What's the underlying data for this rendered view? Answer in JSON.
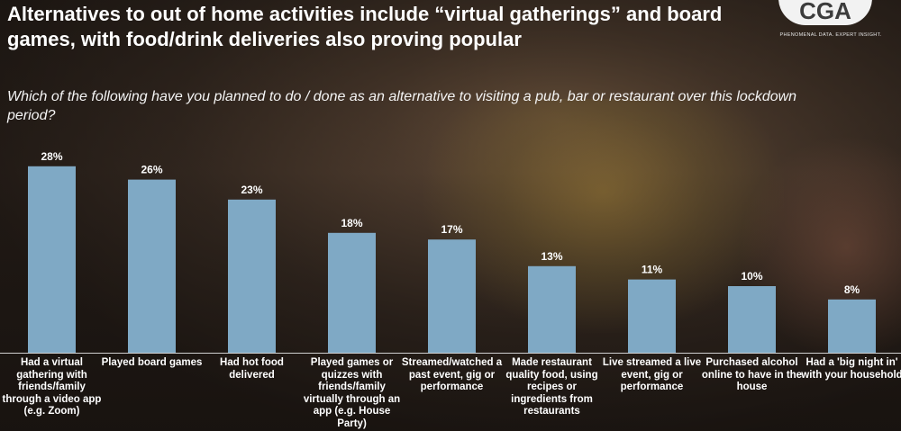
{
  "title": "Alternatives to out of home activities include “virtual gatherings” and board games, with food/drink deliveries also proving popular",
  "logo": {
    "mark": "CGA",
    "tagline": "PHENOMENAL DATA. EXPERT INSIGHT."
  },
  "question": "Which of the following have you planned to do / done as an alternative to visiting a pub, bar or restaurant over this lockdown period?",
  "colors": {
    "bar": "#7fa9c5",
    "text": "#ffffff"
  },
  "chart_data": {
    "type": "bar",
    "categories": [
      "Had a virtual gathering with friends/family through a video app (e.g. Zoom)",
      "Played board games",
      "Had hot food delivered",
      "Played games or quizzes with friends/family virtually through an app (e.g. House Party)",
      "Streamed/watched a past event, gig or performance",
      "Made restaurant quality food, using recipes or ingredients from restaurants",
      "Live streamed a live event, gig or performance",
      "Purchased alcohol online to have in the house",
      "Had a 'big night in' with your household"
    ],
    "values": [
      28,
      26,
      23,
      18,
      17,
      13,
      11,
      10,
      8
    ],
    "data_labels": [
      "28%",
      "26%",
      "23%",
      "18%",
      "17%",
      "13%",
      "11%",
      "10%",
      "8%"
    ],
    "unit": "%",
    "ylim": [
      0,
      30
    ],
    "grid": false,
    "legend": "none"
  }
}
